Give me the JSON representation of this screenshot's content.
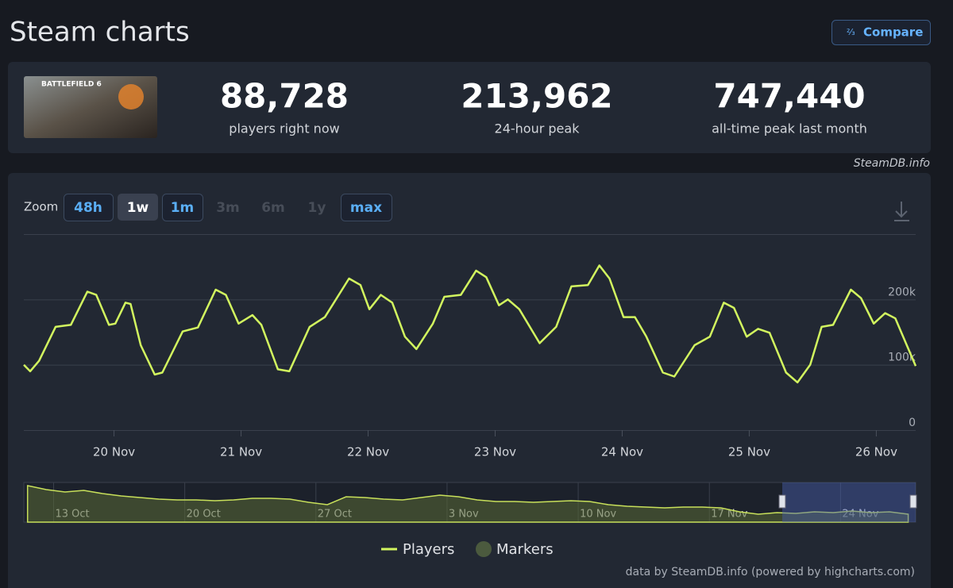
{
  "header": {
    "title": "Steam charts",
    "compare": "Compare"
  },
  "game": {
    "banner": "BATTLEFIELD 6"
  },
  "stats": [
    {
      "value": "88,728",
      "label": "players right now"
    },
    {
      "value": "213,962",
      "label": "24-hour peak"
    },
    {
      "value": "747,440",
      "label": "all-time peak last month"
    }
  ],
  "source": "SteamDB.info",
  "zoom": {
    "label": "Zoom",
    "buttons": [
      {
        "label": "48h",
        "state": "enabled"
      },
      {
        "label": "1w",
        "state": "selected"
      },
      {
        "label": "1m",
        "state": "enabled"
      },
      {
        "label": "3m",
        "state": "disabled"
      },
      {
        "label": "6m",
        "state": "disabled"
      },
      {
        "label": "1y",
        "state": "disabled"
      },
      {
        "label": "max",
        "state": "enabled"
      }
    ]
  },
  "chart_data": {
    "type": "line",
    "x": [
      19.29,
      19.34,
      19.41,
      19.54,
      19.66,
      19.79,
      19.86,
      19.96,
      20.01,
      20.09,
      20.13,
      20.21,
      20.32,
      20.38,
      20.54,
      20.66,
      20.8,
      20.88,
      20.98,
      21.09,
      21.16,
      21.29,
      21.38,
      21.54,
      21.66,
      21.85,
      21.94,
      22.01,
      22.1,
      22.19,
      22.29,
      22.38,
      22.51,
      22.6,
      22.73,
      22.85,
      22.93,
      23.03,
      23.1,
      23.19,
      23.35,
      23.48,
      23.6,
      23.73,
      23.82,
      23.9,
      24.01,
      24.1,
      24.19,
      24.32,
      24.41,
      24.57,
      24.69,
      24.8,
      24.88,
      24.98,
      25.07,
      25.16,
      25.29,
      25.38,
      25.48,
      25.57,
      25.66,
      25.8,
      25.88,
      25.98,
      26.07,
      26.15,
      26.31
    ],
    "series": [
      {
        "name": "Players",
        "color": "#d2f55f",
        "values": [
          100000,
          90000,
          106000,
          158000,
          161000,
          212000,
          207000,
          161000,
          163000,
          195000,
          193000,
          130000,
          85000,
          88000,
          151000,
          157000,
          215000,
          207000,
          163000,
          176000,
          161000,
          93000,
          90000,
          158000,
          173000,
          232000,
          222000,
          185000,
          207000,
          195000,
          143000,
          124000,
          163000,
          204000,
          207000,
          244000,
          234000,
          191000,
          200000,
          185000,
          133000,
          158000,
          220000,
          222000,
          252000,
          232000,
          173000,
          173000,
          143000,
          88000,
          82000,
          130000,
          143000,
          195000,
          187000,
          143000,
          155000,
          149000,
          88000,
          73000,
          100000,
          158000,
          161000,
          215000,
          202000,
          163000,
          179000,
          171000,
          98000
        ]
      }
    ],
    "xlim": [
      19.29,
      26.31
    ],
    "ylim": [
      0,
      300000
    ],
    "xticks": [
      {
        "value": 20,
        "label": "20 Nov"
      },
      {
        "value": 21,
        "label": "21 Nov"
      },
      {
        "value": 22,
        "label": "22 Nov"
      },
      {
        "value": 23,
        "label": "23 Nov"
      },
      {
        "value": 24,
        "label": "24 Nov"
      },
      {
        "value": 25,
        "label": "25 Nov"
      },
      {
        "value": 26,
        "label": "26 Nov"
      }
    ],
    "yticks": [
      0,
      {
        "value": 100000,
        "label": "100k"
      },
      {
        "value": 200000,
        "label": "200k"
      }
    ],
    "grid": true
  },
  "navigator": {
    "categories": [
      null,
      null,
      null,
      "13 Oct",
      null,
      null,
      null,
      null,
      null,
      null,
      "20 Oct",
      null,
      null,
      null,
      null,
      null,
      null,
      "27 Oct",
      null,
      null,
      null,
      null,
      null,
      null,
      "3 Nov",
      null,
      null,
      null,
      null,
      null,
      null,
      "10 Nov",
      null,
      null,
      null,
      null,
      null,
      null,
      "17 Nov",
      null,
      null,
      null,
      null,
      null,
      null,
      "24 Nov",
      null,
      null
    ],
    "values": [
      736000,
      656000,
      608000,
      640000,
      576000,
      528000,
      496000,
      464000,
      448000,
      448000,
      432000,
      448000,
      480000,
      480000,
      464000,
      400000,
      352000,
      512000,
      496000,
      464000,
      448000,
      496000,
      544000,
      512000,
      448000,
      416000,
      416000,
      400000,
      416000,
      432000,
      416000,
      352000,
      320000,
      304000,
      288000,
      304000,
      304000,
      288000,
      208000,
      160000,
      192000,
      176000,
      208000,
      192000,
      224000,
      192000,
      208000,
      160000
    ],
    "ylim": [
      0,
      800000
    ]
  },
  "legend": {
    "markers": {
      "name": "Markers",
      "color": "#4b5a3e"
    }
  },
  "credits": "data by SteamDB.info (powered by highcharts.com)"
}
